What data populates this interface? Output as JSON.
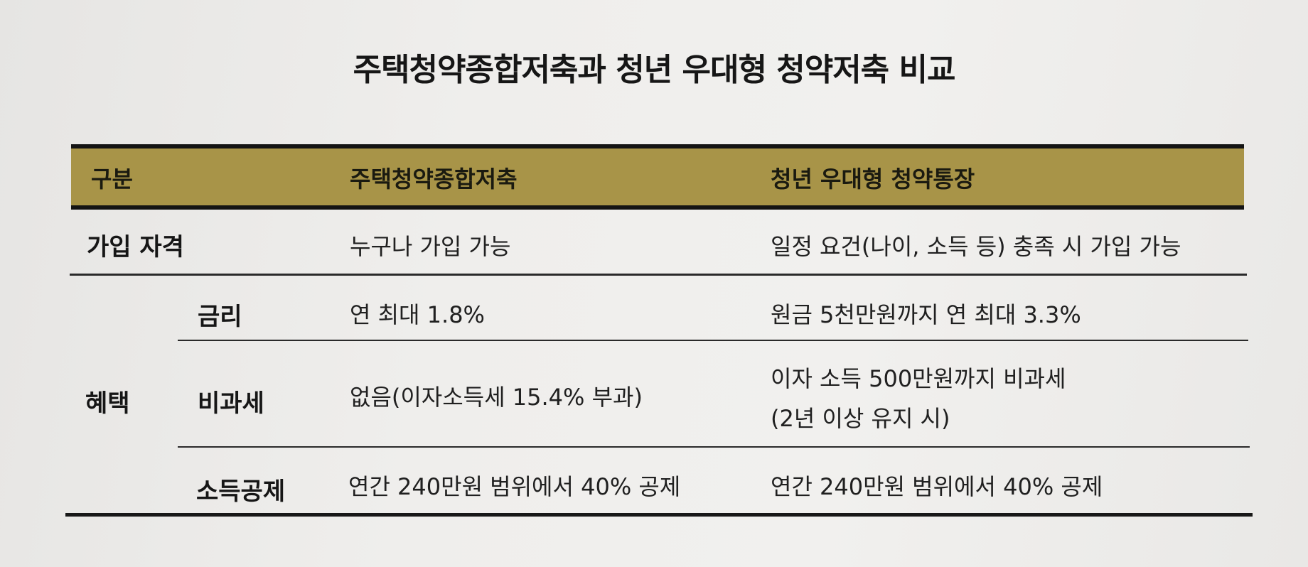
{
  "title": "주택청약종합저축과 청년 우대형 청약저축 비교",
  "table": {
    "headers": [
      "구분",
      "주택청약종합저축",
      "청년 우대형 청약통장"
    ],
    "rows": [
      {
        "category": "가입 자격",
        "sub": "",
        "col1": "누구나 가입 가능",
        "col2": "일정 요건(나이, 소득 등) 충족 시 가입 가능"
      },
      {
        "category": "혜택",
        "sub": "금리",
        "col1": "연 최대 1.8%",
        "col2": "원금 5천만원까지 연 최대 3.3%"
      },
      {
        "category": "혜택",
        "sub": "비과세",
        "col1": "없음(이자소득세 15.4% 부과)",
        "col2": [
          "이자 소득 500만원까지 비과세",
          "(2년 이상 유지 시)"
        ]
      },
      {
        "category": "혜택",
        "sub": "소득공제",
        "col1": "연간 240만원 범위에서 40% 공제",
        "col2": "연간 240만원 범위에서 40% 공제"
      }
    ]
  },
  "colors": {
    "header_band": "#a89448",
    "rule": "#2a2a2a"
  }
}
